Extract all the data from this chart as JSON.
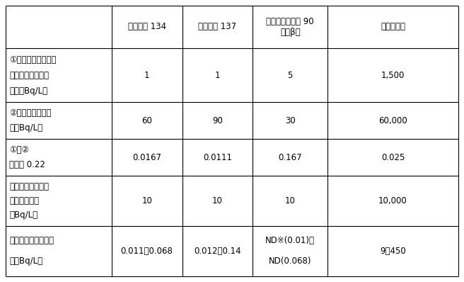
{
  "col_headers": [
    "",
    "セシウム 134",
    "セシウム 137",
    "ストロンチウム 90\n〈全β〉",
    "トリチウム"
  ],
  "rows": [
    {
      "label": "①　一時貯留タンク\n　における運用目\n　標（Bq/L）",
      "label_lines": [
        "①　一時貯留タンク",
        "　における運用目",
        "　標（Bq/L）"
      ],
      "values": [
        "1",
        "1",
        "5",
        "1,500"
      ],
      "value_lines": [
        [
          "1"
        ],
        [
          "1"
        ],
        [
          "5"
        ],
        [
          "1,500"
        ]
      ]
    },
    {
      "label": "②　告示濃度限度\n　（Bq/L）",
      "label_lines": [
        "②　告示濃度限度",
        "　（Bq/L）"
      ],
      "values": [
        "60",
        "90",
        "30",
        "60,000"
      ],
      "value_lines": [
        [
          "60"
        ],
        [
          "90"
        ],
        [
          "30"
        ],
        [
          "60,000"
        ]
      ]
    },
    {
      "label": "①／②\n合計約 0.22",
      "label_lines": [
        "①／②",
        "合計約 0.22"
      ],
      "values": [
        "0.0167",
        "0.0111",
        "0.167",
        "0.025"
      ],
      "value_lines": [
        [
          "0.0167"
        ],
        [
          "0.0111"
        ],
        [
          "0.167"
        ],
        [
          "0.025"
        ]
      ]
    },
    {
      "label": "ＷＨＯ飲料水水質\nガイドライン\n（Bq/L）",
      "label_lines": [
        "ＷＨＯ飲料水水質",
        "ガイドライン",
        "（Bq/L）"
      ],
      "values": [
        "10",
        "10",
        "10",
        "10,000"
      ],
      "value_lines": [
        [
          "10"
        ],
        [
          "10"
        ],
        [
          "10"
        ],
        [
          "10,000"
        ]
      ]
    },
    {
      "label": "地下水バイパスの水\n質（Bq/L）",
      "label_lines": [
        "地下水バイパスの水",
        "質（Bq/L）"
      ],
      "values": [
        "0.011～0.068",
        "0.012～0.14",
        "ND※(0.01)～\nND(0.068)",
        "9～450"
      ],
      "value_lines": [
        [
          "0.011～0.068"
        ],
        [
          "0.012～0.14"
        ],
        [
          "ND※(0.01)～",
          "ND(0.068)"
        ],
        [
          "9～450"
        ]
      ]
    }
  ],
  "bg_color": "#ffffff",
  "line_color": "#000000",
  "text_color": "#000000",
  "fig_width": 6.56,
  "fig_height": 3.98
}
